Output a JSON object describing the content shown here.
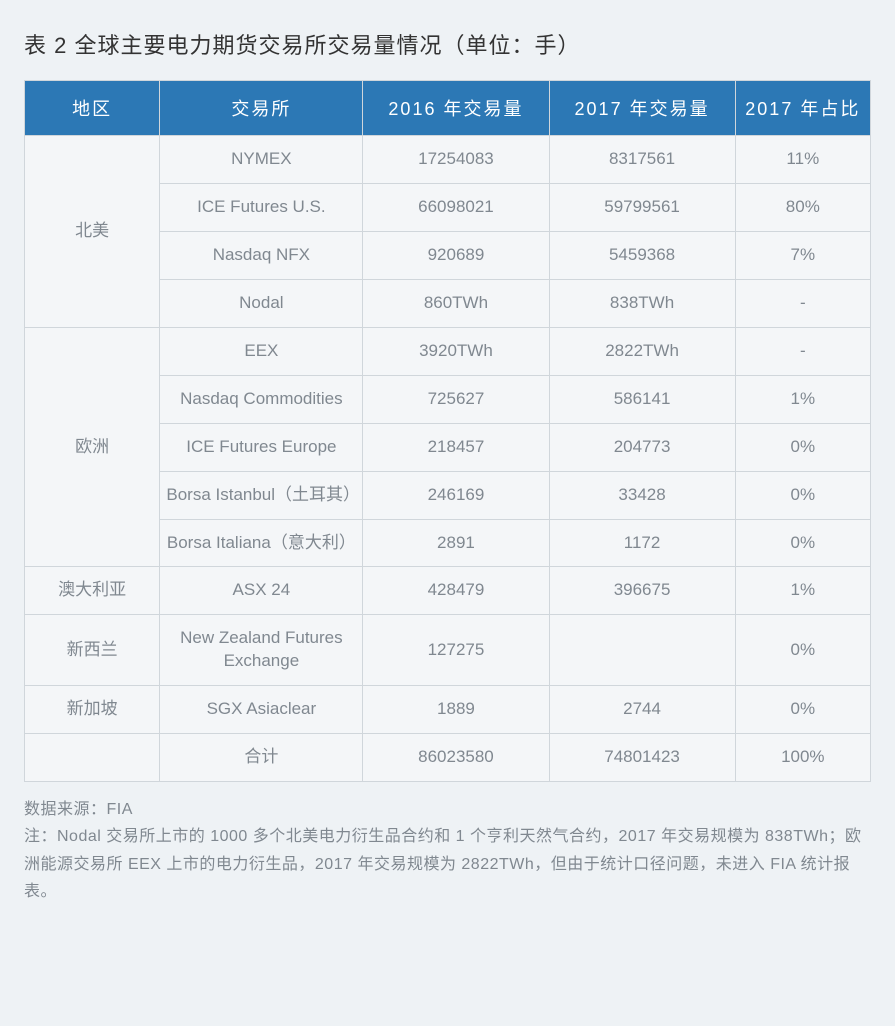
{
  "title": "表 2 全球主要电力期货交易所交易量情况（单位：手）",
  "columns": [
    "地区",
    "交易所",
    "2016 年交易量",
    "2017 年交易量",
    "2017 年占比"
  ],
  "regions": [
    {
      "name": "北美",
      "rows": [
        {
          "exchange": "NYMEX",
          "v2016": "17254083",
          "v2017": "8317561",
          "share": "11%"
        },
        {
          "exchange": "ICE Futures U.S.",
          "v2016": "66098021",
          "v2017": "59799561",
          "share": "80%"
        },
        {
          "exchange": "Nasdaq NFX",
          "v2016": "920689",
          "v2017": "5459368",
          "share": "7%"
        },
        {
          "exchange": "Nodal",
          "v2016": "860TWh",
          "v2017": "838TWh",
          "share": "-"
        }
      ]
    },
    {
      "name": "欧洲",
      "rows": [
        {
          "exchange": "EEX",
          "v2016": "3920TWh",
          "v2017": "2822TWh",
          "share": "-"
        },
        {
          "exchange": "Nasdaq Commodities",
          "v2016": "725627",
          "v2017": "586141",
          "share": "1%"
        },
        {
          "exchange": "ICE Futures Europe",
          "v2016": "218457",
          "v2017": "204773",
          "share": "0%"
        },
        {
          "exchange": "Borsa Istanbul（土耳其）",
          "v2016": "246169",
          "v2017": "33428",
          "share": "0%"
        },
        {
          "exchange": "Borsa Italiana（意大利）",
          "v2016": "2891",
          "v2017": "1172",
          "share": "0%"
        }
      ]
    },
    {
      "name": "澳大利亚",
      "rows": [
        {
          "exchange": "ASX 24",
          "v2016": "428479",
          "v2017": "396675",
          "share": "1%"
        }
      ]
    },
    {
      "name": "新西兰",
      "rows": [
        {
          "exchange": "New Zealand Futures Exchange",
          "v2016": "127275",
          "v2017": "",
          "share": "0%"
        }
      ]
    },
    {
      "name": "新加坡",
      "rows": [
        {
          "exchange": "SGX Asiaclear",
          "v2016": "1889",
          "v2017": "2744",
          "share": "0%"
        }
      ]
    }
  ],
  "total": {
    "label": "合计",
    "v2016": "86023580",
    "v2017": "74801423",
    "share": "100%"
  },
  "footnote_source": "数据来源：FIA",
  "footnote_note": "注：Nodal 交易所上市的 1000 多个北美电力衍生品合约和 1 个亨利天然气合约，2017 年交易规模为 838TWh；欧洲能源交易所 EEX 上市的电力衍生品，2017 年交易规模为 2822TWh，但由于统计口径问题，未进入 FIA 统计报表。",
  "style": {
    "header_bg": "#2c78b5",
    "header_fg": "#ffffff",
    "cell_fg": "#808890",
    "border": "#d0d6db",
    "page_bg": "#eef2f5",
    "table_bg": "#f4f6f8",
    "title_fontsize": 22,
    "header_fontsize": 18,
    "cell_fontsize": 17,
    "footnote_fontsize": 16
  }
}
